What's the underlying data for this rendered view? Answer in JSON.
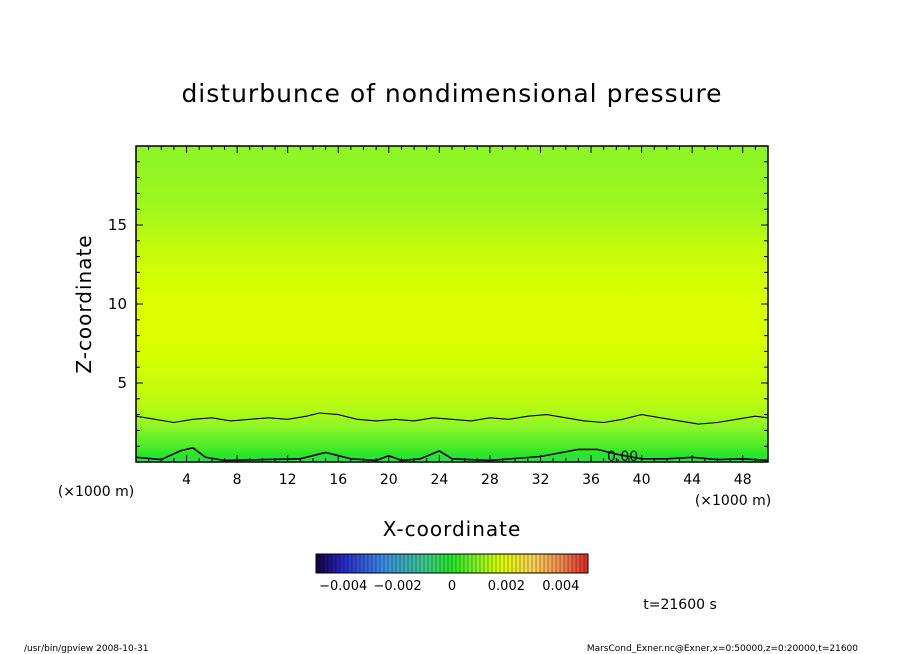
{
  "chart_data": {
    "type": "heatmap",
    "title": "disturbunce of nondimensional pressure",
    "xlabel": "X-coordinate",
    "ylabel": "Z-coordinate",
    "x_unit": "(×1000 m)",
    "y_unit": "(×1000 m)",
    "xlim": [
      0,
      50
    ],
    "ylim": [
      0,
      20
    ],
    "x_ticks": [
      4,
      8,
      12,
      16,
      20,
      24,
      28,
      32,
      36,
      40,
      44,
      48
    ],
    "y_ticks": [
      5,
      10,
      15
    ],
    "grid": false,
    "colorscale": {
      "min": -0.005,
      "max": 0.005,
      "tick_values": [
        -0.004,
        -0.002,
        0,
        0.002,
        0.004
      ],
      "tick_labels": [
        "−0.004",
        "−0.002",
        "0",
        "0.002",
        "0.004"
      ]
    },
    "field_profile": {
      "z": [
        0,
        0.5,
        1,
        1.5,
        2,
        2.5,
        3,
        4,
        6,
        8,
        10,
        12,
        14,
        16,
        18,
        20
      ],
      "value": [
        -0.0005,
        0.0,
        0.0004,
        0.0006,
        0.0009,
        0.0011,
        0.0013,
        0.0015,
        0.0017,
        0.0018,
        0.0018,
        0.0017,
        0.0015,
        0.0012,
        0.0011,
        0.001
      ]
    },
    "contours": [
      {
        "level": 0.0,
        "label": "0.00",
        "x": [
          0,
          2,
          3.5,
          4.5,
          5.5,
          7,
          10,
          13,
          15,
          17,
          19,
          20,
          21,
          22.5,
          24,
          25,
          28,
          32,
          35,
          36.5,
          38,
          40,
          42,
          44,
          46,
          48,
          50
        ],
        "z": [
          0.3,
          0.15,
          0.7,
          0.9,
          0.3,
          0.1,
          0.15,
          0.2,
          0.6,
          0.2,
          0.1,
          0.4,
          0.1,
          0.2,
          0.7,
          0.2,
          0.1,
          0.35,
          0.8,
          0.8,
          0.5,
          0.2,
          0.2,
          0.3,
          0.15,
          0.2,
          0.1
        ]
      },
      {
        "level": 0.001,
        "x": [
          0,
          1.5,
          3,
          4.5,
          6,
          7.5,
          9,
          10.5,
          12,
          13.5,
          14.5,
          16,
          17.5,
          19,
          20.5,
          22,
          23.5,
          25,
          26.5,
          28,
          29.5,
          31,
          32.5,
          34,
          35.5,
          37,
          38.5,
          40,
          41.5,
          43,
          44.5,
          46,
          47.5,
          49,
          50
        ],
        "z": [
          2.9,
          2.7,
          2.5,
          2.7,
          2.8,
          2.6,
          2.7,
          2.8,
          2.7,
          2.9,
          3.1,
          3.0,
          2.7,
          2.6,
          2.7,
          2.6,
          2.8,
          2.7,
          2.6,
          2.8,
          2.7,
          2.9,
          3.0,
          2.8,
          2.6,
          2.5,
          2.7,
          3.0,
          2.8,
          2.6,
          2.4,
          2.5,
          2.7,
          2.9,
          2.8
        ]
      }
    ]
  },
  "annotations": {
    "time": "t=21600 s",
    "footer_left": "/usr/bin/gpview   2008-10-31",
    "footer_right": "MarsCond_Exner.nc@Exner,x=0:50000,z=0:20000,t=21600"
  }
}
